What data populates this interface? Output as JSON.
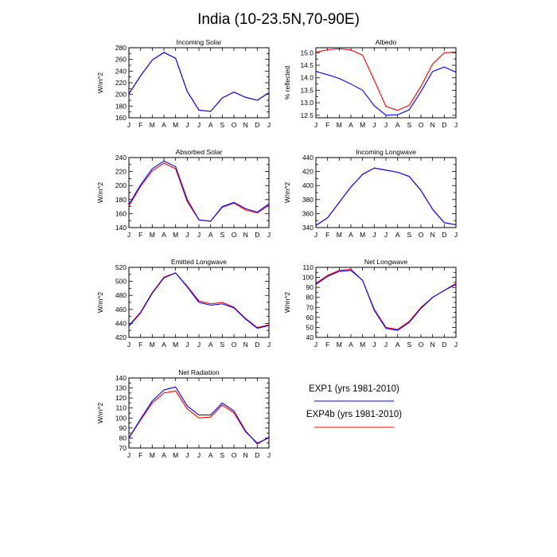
{
  "title": "India (10-23.5N,70-90E)",
  "colors": {
    "series1": "#0000ff",
    "series2": "#ff0000",
    "frame": "#000000"
  },
  "legend": {
    "entries": [
      {
        "label": "EXP1 (yrs 1981-2010)",
        "color": "#0000ff"
      },
      {
        "label": "EXP4b (yrs 1981-2010)",
        "color": "#ff0000"
      }
    ]
  },
  "chart_data": [
    {
      "type": "line",
      "title": "Incoming Solar",
      "ylabel": "W/m^2",
      "x": [
        "J",
        "F",
        "M",
        "A",
        "M",
        "J",
        "J",
        "A",
        "S",
        "O",
        "N",
        "D",
        "J"
      ],
      "ylim": [
        160,
        280
      ],
      "yticks": [
        160,
        170,
        180,
        190,
        200,
        210,
        220,
        230,
        240,
        250,
        260,
        270,
        280
      ],
      "yticklabels": [
        "160",
        "180",
        "200",
        "220",
        "240",
        "260",
        "280"
      ],
      "series": [
        {
          "name": "EXP1 (yrs 1981-2010)",
          "color": "#0000ff",
          "values": [
            201,
            232,
            259,
            272,
            262,
            205,
            173,
            171,
            194,
            204,
            195,
            190,
            203
          ]
        },
        {
          "name": "EXP4b (yrs 1981-2010)",
          "color": "#ff0000",
          "values": [
            201,
            232,
            259,
            272,
            262,
            205,
            173,
            171,
            194,
            204,
            195,
            190,
            203
          ]
        }
      ]
    },
    {
      "type": "line",
      "title": "Albedo",
      "ylabel": "% reflected",
      "x": [
        "J",
        "F",
        "M",
        "A",
        "M",
        "J",
        "J",
        "A",
        "S",
        "O",
        "N",
        "D",
        "J"
      ],
      "ylim": [
        12.4,
        15.2
      ],
      "yticks": [
        12.5,
        12.75,
        13.0,
        13.25,
        13.5,
        13.75,
        14.0,
        14.25,
        14.5,
        14.75,
        15.0
      ],
      "yticklabels": [
        "12.5",
        "13.0",
        "13.5",
        "14.0",
        "14.5",
        "15.0"
      ],
      "series": [
        {
          "name": "EXP1 (yrs 1981-2010)",
          "color": "#0000ff",
          "values": [
            14.25,
            14.12,
            13.97,
            13.75,
            13.5,
            12.88,
            12.5,
            12.52,
            12.72,
            13.45,
            14.25,
            14.43,
            14.22
          ]
        },
        {
          "name": "EXP4b (yrs 1981-2010)",
          "color": "#ff0000",
          "values": [
            15.02,
            15.12,
            15.16,
            15.11,
            14.9,
            13.9,
            12.85,
            12.7,
            12.9,
            13.65,
            14.55,
            15.0,
            15.03
          ]
        }
      ]
    },
    {
      "type": "line",
      "title": "Absorbed Solar",
      "ylabel": "W/m^2",
      "x": [
        "J",
        "F",
        "M",
        "A",
        "M",
        "J",
        "J",
        "A",
        "S",
        "O",
        "N",
        "D",
        "J"
      ],
      "ylim": [
        140,
        240
      ],
      "yticks": [
        140,
        150,
        160,
        170,
        180,
        190,
        200,
        210,
        220,
        230,
        240
      ],
      "yticklabels": [
        "140",
        "160",
        "180",
        "200",
        "220",
        "240"
      ],
      "series": [
        {
          "name": "EXP1 (yrs 1981-2010)",
          "color": "#0000ff",
          "values": [
            173,
            201,
            224,
            235,
            227,
            180,
            151,
            149,
            170,
            176,
            167,
            162,
            174
          ]
        },
        {
          "name": "EXP4b (yrs 1981-2010)",
          "color": "#ff0000",
          "values": [
            171,
            199,
            221,
            232,
            224,
            177,
            151,
            149,
            169,
            175,
            165,
            161,
            172
          ]
        }
      ]
    },
    {
      "type": "line",
      "title": "Incoming Longwave",
      "ylabel": "W/m^2",
      "x": [
        "J",
        "F",
        "M",
        "A",
        "M",
        "J",
        "J",
        "A",
        "S",
        "O",
        "N",
        "D",
        "J"
      ],
      "ylim": [
        340,
        440
      ],
      "yticks": [
        340,
        350,
        360,
        370,
        380,
        390,
        400,
        410,
        420,
        430,
        440
      ],
      "yticklabels": [
        "340",
        "360",
        "380",
        "400",
        "420",
        "440"
      ],
      "series": [
        {
          "name": "EXP1 (yrs 1981-2010)",
          "color": "#0000ff",
          "values": [
            343,
            354,
            376,
            398,
            416,
            425,
            422,
            419,
            413,
            393,
            366,
            347,
            344
          ]
        },
        {
          "name": "EXP4b (yrs 1981-2010)",
          "color": "#ff0000",
          "values": [
            343,
            354,
            376,
            398,
            416,
            425,
            422,
            419,
            413,
            393,
            366,
            347,
            344
          ]
        }
      ]
    },
    {
      "type": "line",
      "title": "Emitted Longwave",
      "ylabel": "W/m^2",
      "x": [
        "J",
        "F",
        "M",
        "A",
        "M",
        "J",
        "J",
        "A",
        "S",
        "O",
        "N",
        "D",
        "J"
      ],
      "ylim": [
        420,
        520
      ],
      "yticks": [
        420,
        430,
        440,
        450,
        460,
        470,
        480,
        490,
        500,
        510,
        520
      ],
      "yticklabels": [
        "420",
        "440",
        "460",
        "480",
        "500",
        "520"
      ],
      "series": [
        {
          "name": "EXP1 (yrs 1981-2010)",
          "color": "#0000ff",
          "values": [
            436,
            455,
            483,
            505,
            512,
            492,
            470,
            466,
            468,
            462,
            446,
            433,
            437
          ]
        },
        {
          "name": "EXP4b (yrs 1981-2010)",
          "color": "#ff0000",
          "values": [
            437,
            456,
            484,
            506,
            512,
            493,
            472,
            468,
            470,
            463,
            447,
            434,
            438
          ]
        }
      ]
    },
    {
      "type": "line",
      "title": "Net Longwave",
      "ylabel": "W/m^2",
      "x": [
        "J",
        "F",
        "M",
        "A",
        "M",
        "J",
        "J",
        "A",
        "S",
        "O",
        "N",
        "D",
        "J"
      ],
      "ylim": [
        40,
        110
      ],
      "yticks": [
        40,
        45,
        50,
        55,
        60,
        65,
        70,
        75,
        80,
        85,
        90,
        95,
        100,
        105,
        110
      ],
      "yticklabels": [
        "40",
        "50",
        "60",
        "70",
        "80",
        "90",
        "100",
        "110"
      ],
      "series": [
        {
          "name": "EXP1 (yrs 1981-2010)",
          "color": "#0000ff",
          "values": [
            93,
            101,
            106,
            107,
            97,
            67,
            49,
            47,
            55,
            69,
            80,
            87,
            93
          ]
        },
        {
          "name": "EXP4b (yrs 1981-2010)",
          "color": "#ff0000",
          "values": [
            94,
            102,
            107,
            108,
            97,
            68,
            50,
            48,
            56,
            70,
            80,
            87,
            94
          ]
        }
      ]
    },
    {
      "type": "line",
      "title": "Net Radiation",
      "ylabel": "W/m^2",
      "x": [
        "J",
        "F",
        "M",
        "A",
        "M",
        "J",
        "J",
        "A",
        "S",
        "O",
        "N",
        "D",
        "J"
      ],
      "ylim": [
        70,
        140
      ],
      "yticks": [
        70,
        75,
        80,
        85,
        90,
        95,
        100,
        105,
        110,
        115,
        120,
        125,
        130,
        135,
        140
      ],
      "yticklabels": [
        "70",
        "80",
        "90",
        "100",
        "110",
        "120",
        "130",
        "140"
      ],
      "series": [
        {
          "name": "EXP1 (yrs 1981-2010)",
          "color": "#0000ff",
          "values": [
            80,
            99,
            117,
            128,
            131,
            112,
            103,
            103,
            115,
            107,
            87,
            74,
            81
          ]
        },
        {
          "name": "EXP4b (yrs 1981-2010)",
          "color": "#ff0000",
          "values": [
            80,
            98,
            115,
            125,
            127,
            109,
            100,
            101,
            113,
            105,
            86,
            75,
            80
          ]
        }
      ]
    }
  ]
}
